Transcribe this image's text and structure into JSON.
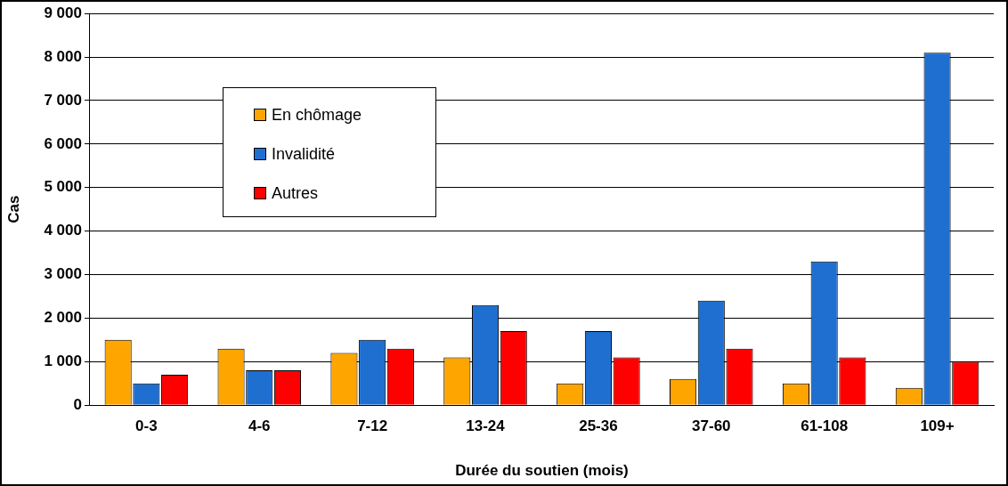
{
  "chart_data": {
    "type": "bar",
    "xlabel": "Durée du soutien (mois)",
    "ylabel": "Cas",
    "categories": [
      "0-3",
      "4-6",
      "7-12",
      "13-24",
      "25-36",
      "37-60",
      "61-108",
      "109+"
    ],
    "series": [
      {
        "name": "En chômage",
        "color": "#ffa500",
        "values": [
          1500,
          1300,
          1200,
          1100,
          500,
          600,
          500,
          400
        ]
      },
      {
        "name": "Invalidité",
        "color": "#1f6fd1",
        "values": [
          500,
          800,
          1500,
          2300,
          1700,
          2400,
          3300,
          8100
        ]
      },
      {
        "name": "Autres",
        "color": "#ff0000",
        "values": [
          700,
          800,
          1300,
          1700,
          1100,
          1300,
          1100,
          1000
        ]
      }
    ],
    "ylim": [
      0,
      9000
    ],
    "yticks": [
      {
        "value": 0,
        "label": "0"
      },
      {
        "value": 1000,
        "label": "1 000"
      },
      {
        "value": 2000,
        "label": "2 000"
      },
      {
        "value": 3000,
        "label": "3 000"
      },
      {
        "value": 4000,
        "label": "4 000"
      },
      {
        "value": 5000,
        "label": "5 000"
      },
      {
        "value": 6000,
        "label": "6 000"
      },
      {
        "value": 7000,
        "label": "7 000"
      },
      {
        "value": 8000,
        "label": "8 000"
      },
      {
        "value": 9000,
        "label": "9 000"
      }
    ],
    "grid": "y",
    "legend": "top left"
  }
}
